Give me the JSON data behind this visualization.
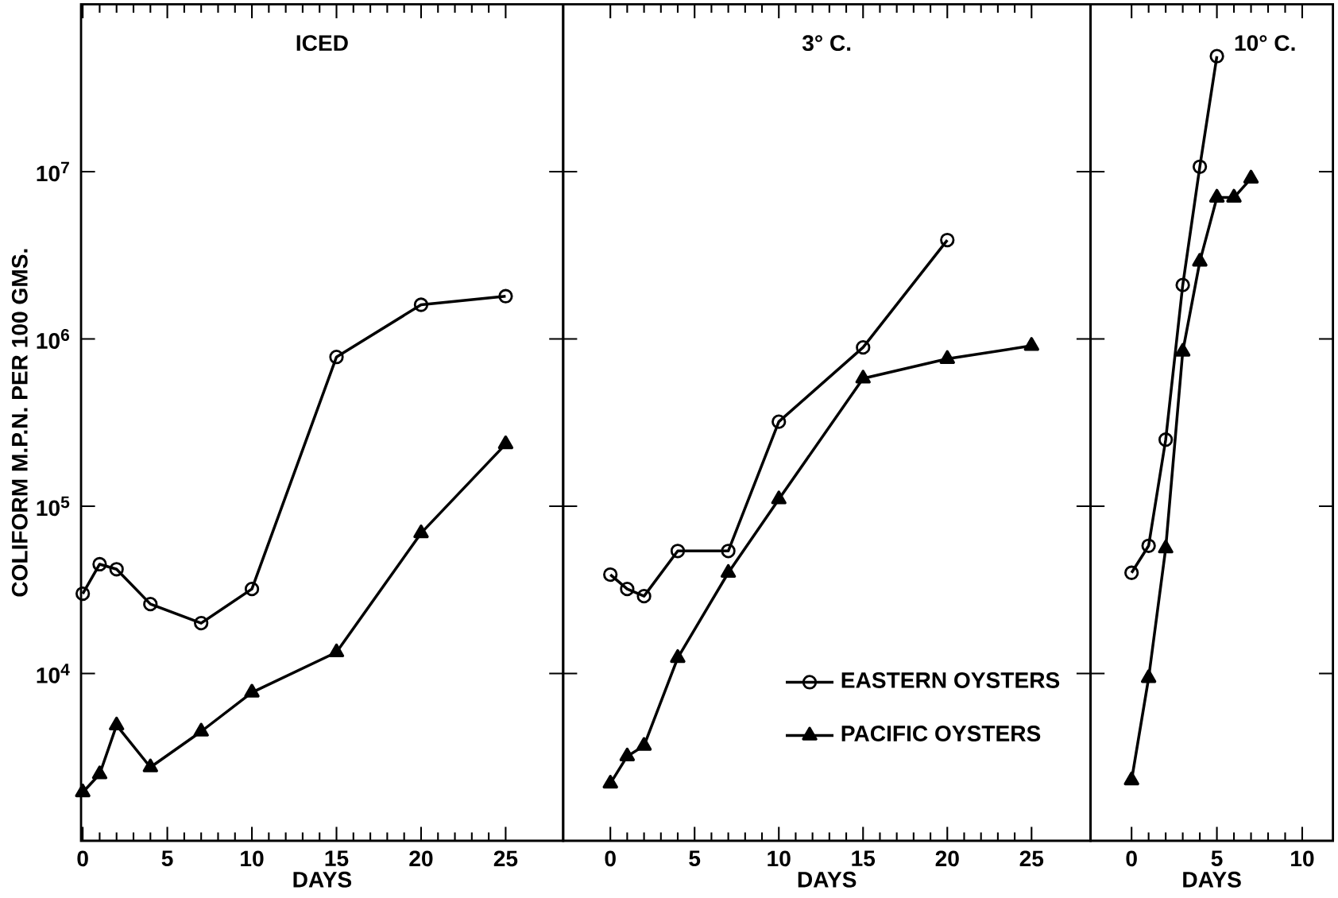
{
  "chart_data": [
    {
      "type": "line",
      "title": "ICED",
      "xlabel": "DAYS",
      "ylabel": "COLIFORM M.P.N. PER 100 GMS.",
      "log": "y",
      "xlim": [
        -0.1,
        28.4
      ],
      "xticks": [
        0,
        5,
        10,
        15,
        20,
        25
      ],
      "ylim": [
        1000,
        100000000
      ],
      "yticks": [
        {
          "value": 10000,
          "label": "10$^{4}$"
        },
        {
          "value": 100000,
          "label": "10$^{5}$"
        },
        {
          "value": 1000000,
          "label": "10$^{6}$"
        },
        {
          "value": 10000000,
          "label": "10$^{7}$"
        }
      ],
      "legend": false,
      "series": [
        {
          "color": "#000000",
          "marker": "circle",
          "x": [
            0,
            1,
            2,
            4,
            7,
            10,
            15,
            20,
            25
          ],
          "values": [
            30000,
            45000,
            42000,
            26000,
            20000,
            32000,
            780000,
            1600000,
            1800000
          ]
        },
        {
          "color": "#000000",
          "marker": "triangle",
          "x": [
            0,
            1,
            2,
            4,
            7,
            10,
            15,
            20,
            25
          ],
          "values": [
            1950,
            2500,
            4900,
            2750,
            4500,
            7700,
            13400,
            69000,
            235000
          ]
        }
      ]
    },
    {
      "type": "line",
      "title": "3° C.",
      "xlabel": "DAYS",
      "log": "y",
      "tick_labels": "x",
      "xlim": [
        -2.8,
        28.5
      ],
      "xticks": [
        0,
        5,
        10,
        15,
        20,
        25
      ],
      "ylim": [
        1000,
        100000000
      ],
      "yticks": [
        10000,
        100000,
        1000000,
        10000000
      ],
      "legend": "bottom right",
      "series": [
        {
          "name": "EASTERN OYSTERS",
          "color": "#000000",
          "marker": "circle",
          "x": [
            0,
            1,
            2,
            4,
            7,
            10,
            15,
            20
          ],
          "values": [
            39000,
            32000,
            29000,
            54000,
            54000,
            320000,
            890000,
            3900000
          ]
        },
        {
          "name": "PACIFIC OYSTERS",
          "color": "#000000",
          "marker": "triangle",
          "x": [
            0,
            1,
            2,
            4,
            7,
            10,
            15,
            20,
            25
          ],
          "values": [
            2200,
            3200,
            3700,
            12400,
            40000,
            110000,
            580000,
            760000,
            910000
          ]
        }
      ]
    },
    {
      "type": "line",
      "title": "10° C.",
      "xlabel": "DAYS",
      "log": "y",
      "tick_labels": "x",
      "xlim": [
        -2.4,
        11.8
      ],
      "xticks": [
        0,
        5,
        10
      ],
      "ylim": [
        1000,
        100000000
      ],
      "yticks": [
        10000,
        100000,
        1000000,
        10000000
      ],
      "legend": false,
      "series": [
        {
          "color": "#000000",
          "marker": "circle",
          "x": [
            0,
            1,
            2,
            3,
            4,
            5
          ],
          "values": [
            40000,
            58000,
            250000,
            2100000,
            10700000,
            49000000
          ]
        },
        {
          "color": "#000000",
          "marker": "triangle",
          "x": [
            0,
            1,
            2,
            3,
            4,
            5,
            6,
            7
          ],
          "values": [
            2300,
            9400,
            56000,
            840000,
            2900000,
            7000000,
            7000000,
            9100000
          ]
        }
      ]
    }
  ]
}
